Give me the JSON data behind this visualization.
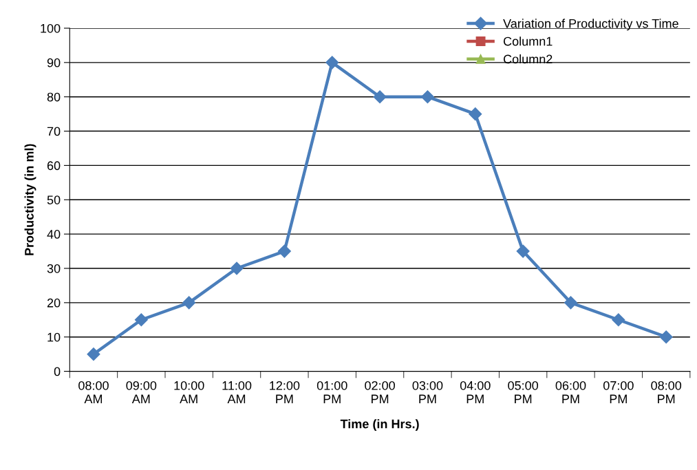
{
  "chart_data": {
    "type": "line",
    "xlabel": "Time (in Hrs.)",
    "ylabel": "Productivity (in ml)",
    "categories": [
      "08:00\nAM",
      "09:00\nAM",
      "10:00\nAM",
      "11:00\nAM",
      "12:00\nPM",
      "01:00\nPM",
      "02:00\nPM",
      "03:00\nPM",
      "04:00\nPM",
      "05:00\nPM",
      "06:00\nPM",
      "07:00\nPM",
      "08:00\nPM"
    ],
    "series": [
      {
        "name": "Variation of Productivity vs Time",
        "color": "#4a7ebb",
        "marker": "diamond",
        "values": [
          5,
          15,
          20,
          30,
          35,
          90,
          80,
          80,
          75,
          35,
          20,
          15,
          10
        ]
      },
      {
        "name": "Column1",
        "color": "#be4b48",
        "marker": "square",
        "values": [
          null,
          null,
          null,
          null,
          null,
          null,
          null,
          null,
          null,
          null,
          null,
          null,
          null
        ]
      },
      {
        "name": "Column2",
        "color": "#98b954",
        "marker": "triangle",
        "values": [
          null,
          null,
          null,
          null,
          null,
          null,
          null,
          null,
          null,
          null,
          null,
          null,
          null
        ]
      }
    ],
    "ylim": [
      0,
      100
    ],
    "yticks": [
      0,
      10,
      20,
      30,
      40,
      50,
      60,
      70,
      80,
      90,
      100
    ],
    "grid": "y",
    "legend": "top right",
    "line_style": "solid"
  }
}
